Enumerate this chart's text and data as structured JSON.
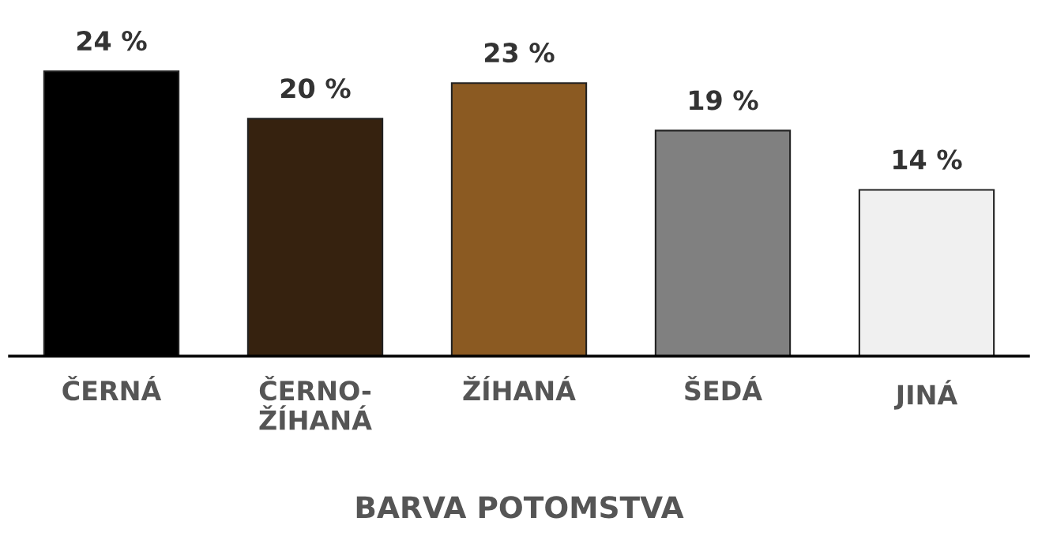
{
  "chart_data": {
    "type": "bar",
    "xlabel": "BARVA POTOMSTVA",
    "categories": [
      "ČERNÁ",
      "ČERNO-\nŽÍHANÁ",
      "ŽÍHANÁ",
      "ŠEDÁ",
      "JINÁ"
    ],
    "values": [
      24,
      20,
      23,
      19,
      14
    ],
    "colors": [
      "#000000",
      "#36220f",
      "#8b5a22",
      "#808080",
      "#f0f0f0"
    ],
    "value_labels": [
      "24 %",
      "20 %",
      "23 %",
      "19 %",
      "14 %"
    ],
    "tick_labels": "x",
    "grid": false,
    "legend": false
  }
}
